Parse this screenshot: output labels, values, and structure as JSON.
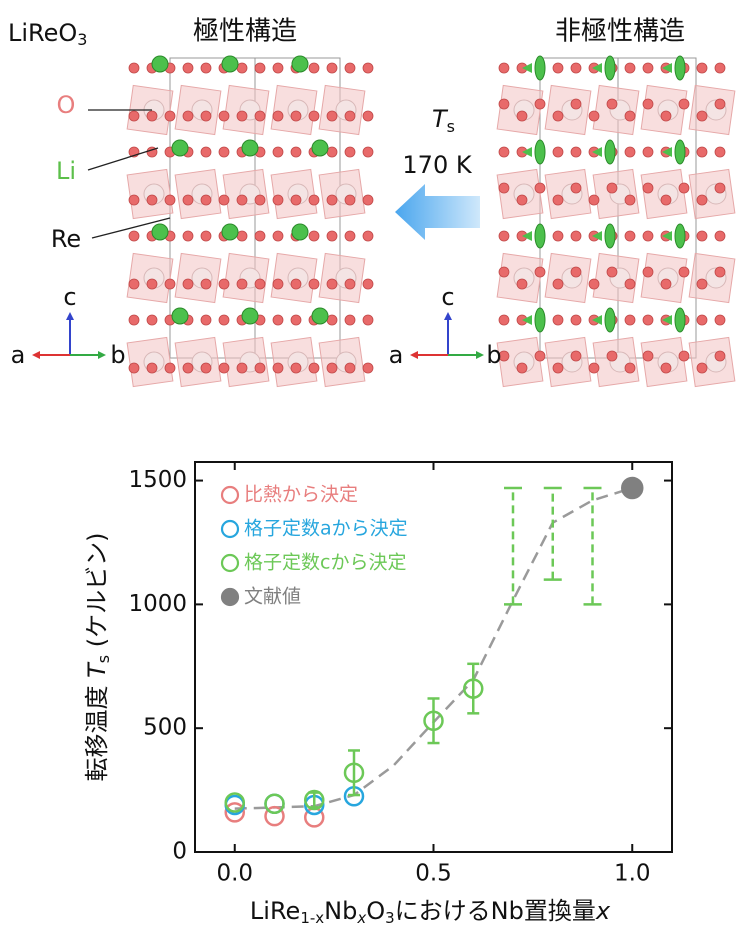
{
  "illustration": {
    "formula": [
      "LiReO",
      "3"
    ],
    "polar_title": "極性構造",
    "nonpolar_title": "非極性構造",
    "transition": [
      "T",
      "s"
    ],
    "temperature": "170 K",
    "atom_labels": [
      "O",
      "Li",
      "Re"
    ],
    "axes_left": [
      "c",
      "a",
      "b"
    ],
    "axes_right": [
      "c",
      "a",
      "b"
    ]
  },
  "chart_data": {
    "type": "scatter",
    "ylabel": [
      "転移温度 ",
      "T",
      "s",
      " (ケルビン)"
    ],
    "xlabel": [
      "LiRe",
      "1-x",
      "Nb",
      "x",
      "O",
      "3",
      "におけるNb置換量",
      "x"
    ],
    "xlim": [
      -0.1,
      1.1
    ],
    "ylim": [
      0,
      1575
    ],
    "xticks": [
      {
        "value": 0,
        "label": "0.0"
      },
      {
        "value": 0.5,
        "label": "0.5"
      },
      {
        "value": 1,
        "label": "1.0"
      }
    ],
    "yticks": [
      0,
      500,
      1000,
      1500
    ],
    "legend": "upper left",
    "series": [
      {
        "name": "比熱から決定",
        "color": "#e87e7e",
        "marker": "open",
        "x": [
          0,
          0.1,
          0.2
        ],
        "values": [
          160,
          145,
          140
        ]
      },
      {
        "name": "格子定数aから決定",
        "color": "#27a6de",
        "marker": "open",
        "x": [
          0,
          0.1,
          0.2,
          0.3
        ],
        "values": [
          190,
          195,
          190,
          225
        ]
      },
      {
        "name": "格子定数cから決定",
        "color": "#6cc857",
        "marker": "open",
        "x": [
          0,
          0.1,
          0.2,
          0.3,
          0.5,
          0.6
        ],
        "values": [
          200,
          195,
          210,
          320,
          530,
          660
        ],
        "errors": [
          null,
          null,
          30,
          90,
          90,
          100
        ],
        "ranges": {
          "x": [
            0.7,
            0.8,
            0.9
          ],
          "low": [
            1000,
            1100,
            1000
          ],
          "high": [
            1470,
            1470,
            1470
          ]
        }
      },
      {
        "name": "文献値",
        "color": "#808080",
        "marker": "filled",
        "x": [
          1
        ],
        "values": [
          1470
        ]
      }
    ],
    "curve": {
      "color": "#9a9a9a",
      "x": [
        0,
        0.2,
        0.3,
        0.4,
        0.5,
        0.6,
        0.7,
        0.8,
        0.9,
        1
      ],
      "values": [
        175,
        185,
        230,
        350,
        524,
        694,
        1016,
        1330,
        1420,
        1470
      ]
    }
  }
}
